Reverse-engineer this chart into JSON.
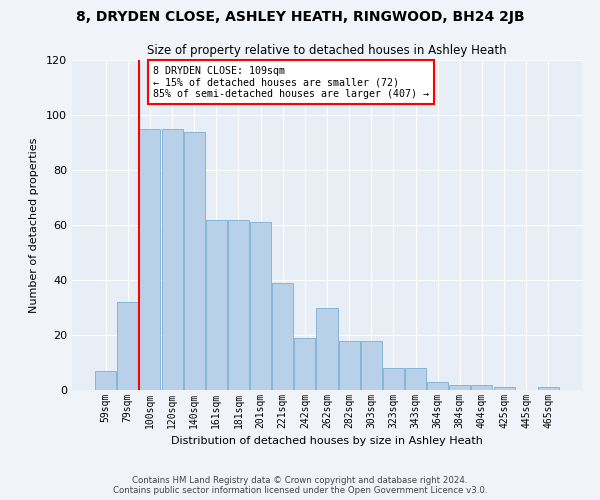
{
  "title": "8, DRYDEN CLOSE, ASHLEY HEATH, RINGWOOD, BH24 2JB",
  "subtitle": "Size of property relative to detached houses in Ashley Heath",
  "xlabel": "Distribution of detached houses by size in Ashley Heath",
  "ylabel": "Number of detached properties",
  "bar_color": "#b8d0e8",
  "bar_edge_color": "#7aafd4",
  "background_color": "#e8eef5",
  "grid_color": "#ffffff",
  "fig_background": "#f0f4f8",
  "categories": [
    "59sqm",
    "79sqm",
    "100sqm",
    "120sqm",
    "140sqm",
    "161sqm",
    "181sqm",
    "201sqm",
    "221sqm",
    "242sqm",
    "262sqm",
    "282sqm",
    "303sqm",
    "323sqm",
    "343sqm",
    "364sqm",
    "384sqm",
    "404sqm",
    "425sqm",
    "445sqm",
    "465sqm"
  ],
  "values": [
    7,
    32,
    95,
    95,
    94,
    62,
    62,
    61,
    39,
    19,
    30,
    18,
    18,
    8,
    8,
    3,
    2,
    2,
    1,
    0,
    1
  ],
  "ylim": [
    0,
    120
  ],
  "yticks": [
    0,
    20,
    40,
    60,
    80,
    100,
    120
  ],
  "redline_bar_index": 2,
  "annotation_title": "8 DRYDEN CLOSE: 109sqm",
  "annotation_line1": "← 15% of detached houses are smaller (72)",
  "annotation_line2": "85% of semi-detached houses are larger (407) →",
  "footer_line1": "Contains HM Land Registry data © Crown copyright and database right 2024.",
  "footer_line2": "Contains public sector information licensed under the Open Government Licence v3.0."
}
